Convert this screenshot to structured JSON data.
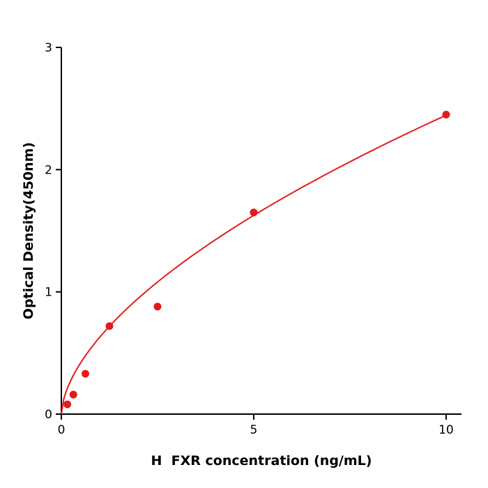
{
  "chart_data": {
    "type": "scatter",
    "title": "",
    "xlabel": "H  FXR concentration (ng/mL)",
    "ylabel": "Optical Density(450nm)",
    "xlim": [
      0,
      10.4
    ],
    "ylim": [
      0,
      3
    ],
    "xticks": [
      0,
      5,
      10
    ],
    "yticks": [
      0,
      1,
      2,
      3
    ],
    "grid": false,
    "legend": "none",
    "point_color": "#e41a1c",
    "curve_color": "#e41a1c",
    "axis_color": "#000000",
    "points": [
      {
        "x": 0.156,
        "y": 0.08
      },
      {
        "x": 0.3125,
        "y": 0.16
      },
      {
        "x": 0.625,
        "y": 0.33
      },
      {
        "x": 1.25,
        "y": 0.72
      },
      {
        "x": 2.5,
        "y": 0.88
      },
      {
        "x": 5,
        "y": 1.65
      },
      {
        "x": 10,
        "y": 2.45
      }
    ],
    "fit_curve": {
      "type": "power",
      "a": 0.63,
      "k": 0.589,
      "x_start": 0,
      "x_end": 10
    }
  }
}
